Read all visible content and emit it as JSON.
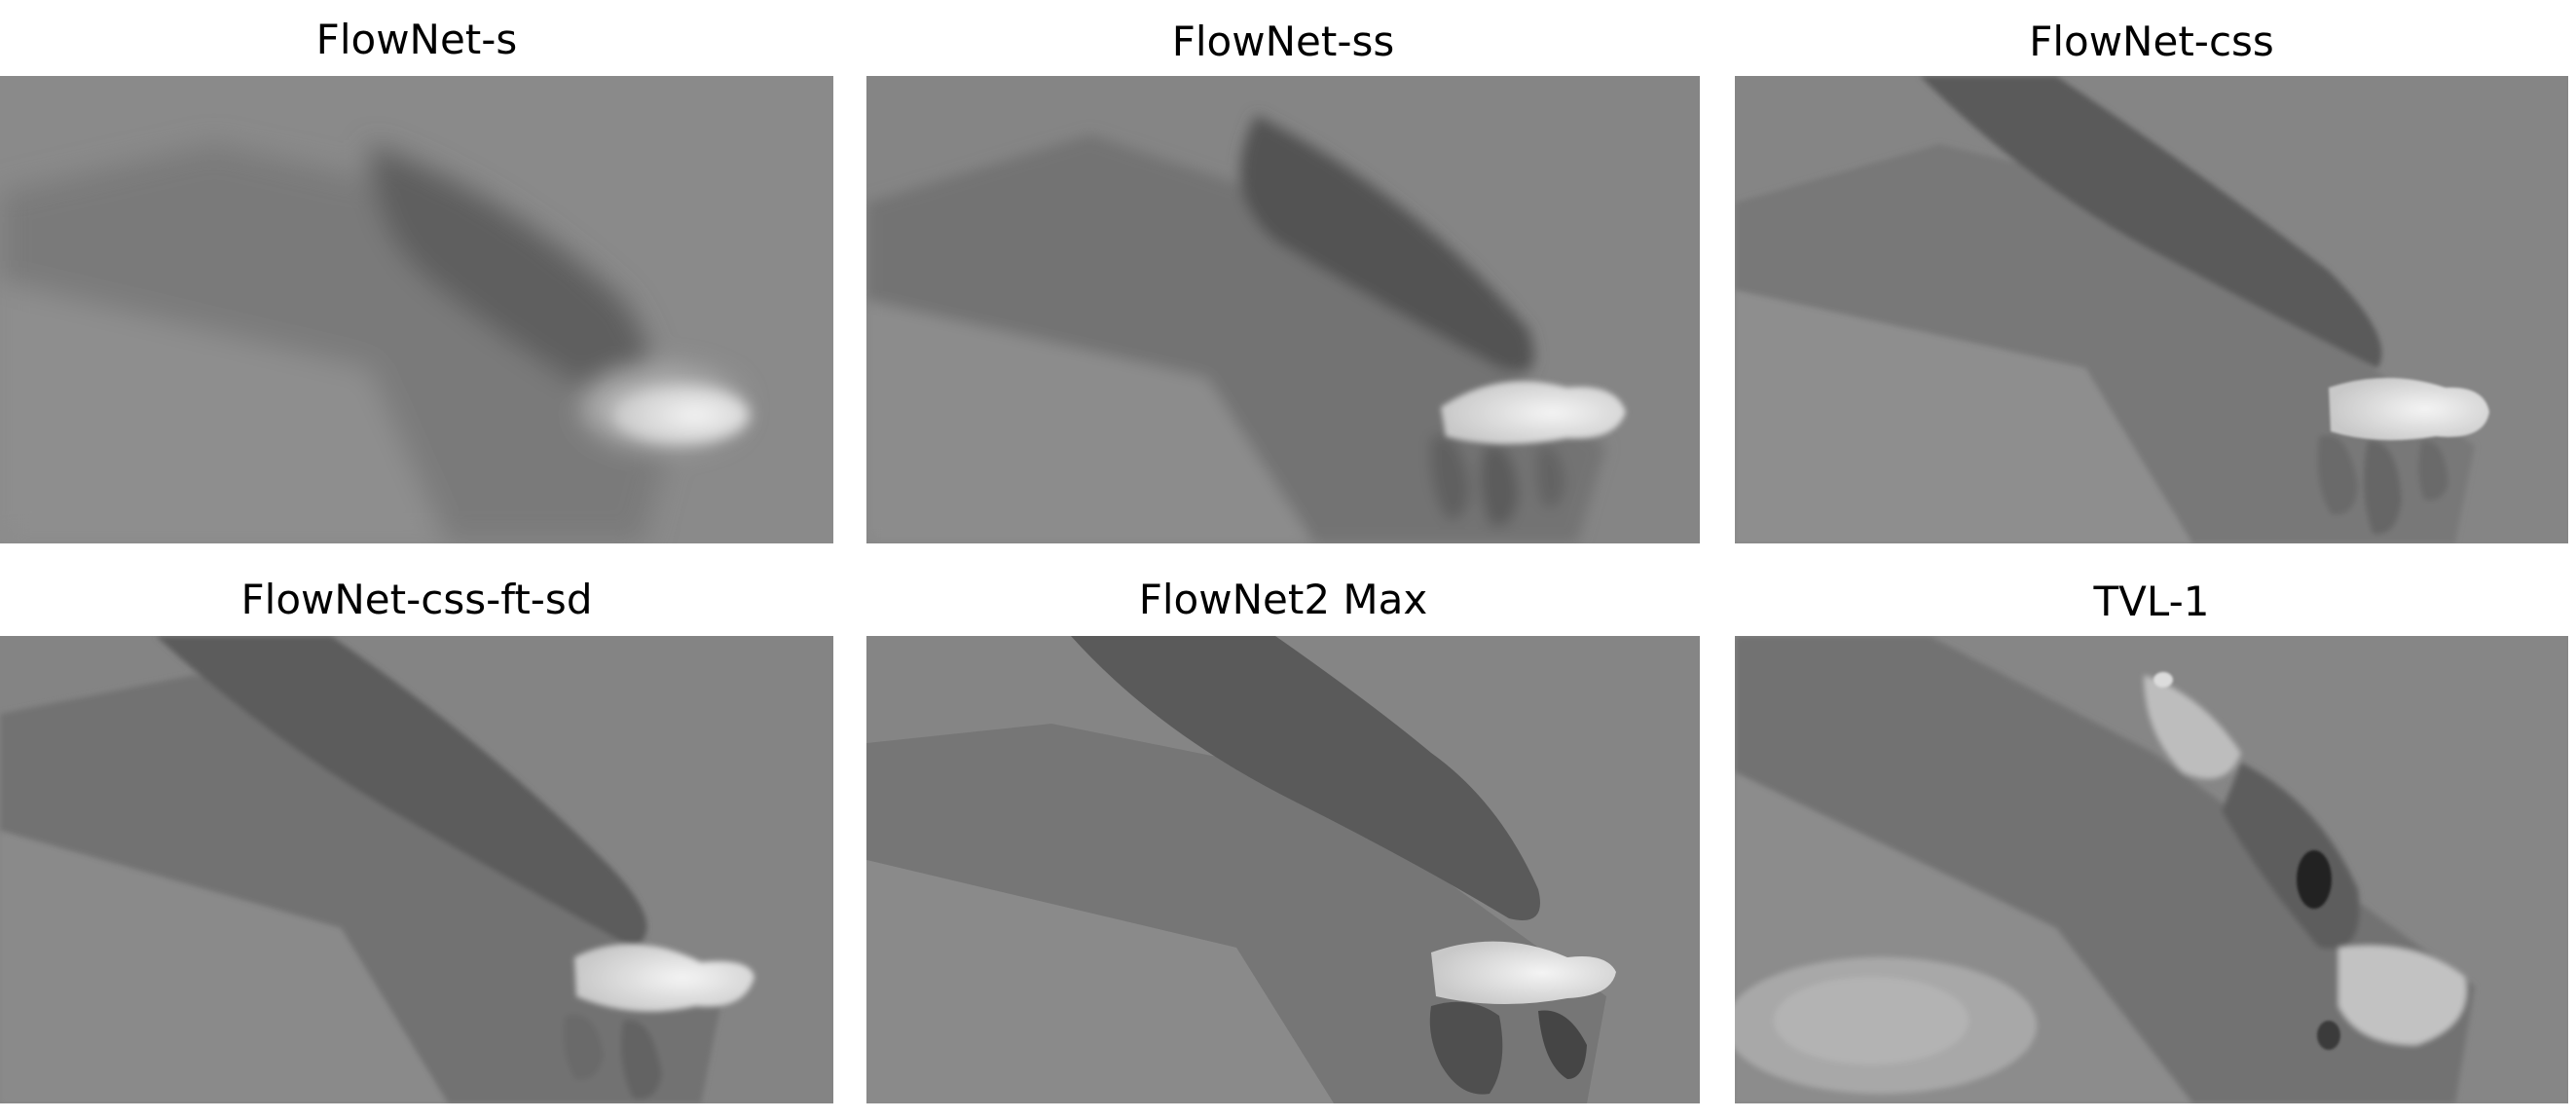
{
  "figure": {
    "panels": [
      {
        "title": "FlowNet-s"
      },
      {
        "title": "FlowNet-ss"
      },
      {
        "title": "FlowNet-css"
      },
      {
        "title": "FlowNet-css-ft-sd"
      },
      {
        "title": "FlowNet2 Max"
      },
      {
        "title": "TVL-1"
      }
    ]
  },
  "colors": {
    "background": "#ffffff",
    "flow_base": "#7f7f7f",
    "arm_dark": "#575757",
    "hand_bright": "#f0f0f0"
  }
}
